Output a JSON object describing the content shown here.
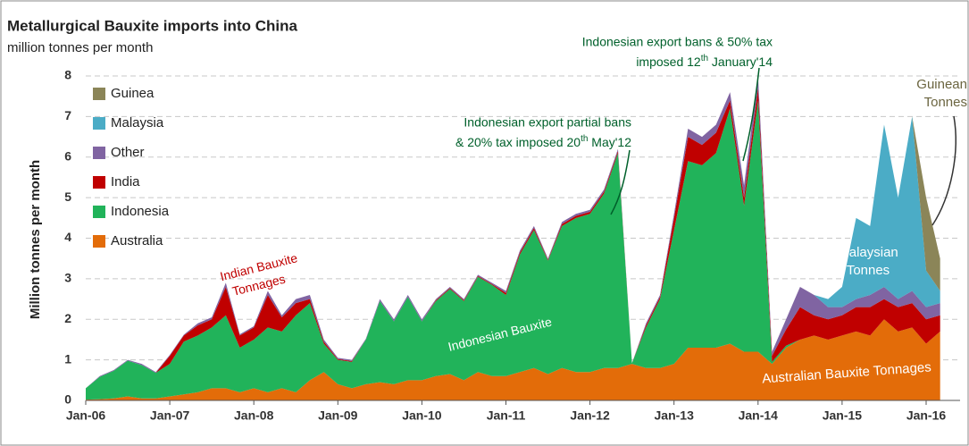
{
  "chart_data": {
    "type": "stacked_area",
    "title": "Metallurgical Bauxite imports into China",
    "subtitle": "million tonnes per month",
    "y_label": "Million tonnes per month",
    "x": [
      "2006-01",
      "2006-03",
      "2006-05",
      "2006-07",
      "2006-09",
      "2006-11",
      "2007-01",
      "2007-03",
      "2007-05",
      "2007-07",
      "2007-09",
      "2007-11",
      "2008-01",
      "2008-03",
      "2008-05",
      "2008-07",
      "2008-09",
      "2008-11",
      "2009-01",
      "2009-03",
      "2009-05",
      "2009-07",
      "2009-09",
      "2009-11",
      "2010-01",
      "2010-03",
      "2010-05",
      "2010-07",
      "2010-09",
      "2010-11",
      "2011-01",
      "2011-03",
      "2011-05",
      "2011-07",
      "2011-09",
      "2011-11",
      "2012-01",
      "2012-03",
      "2012-05",
      "2012-07",
      "2012-09",
      "2012-11",
      "2013-01",
      "2013-03",
      "2013-05",
      "2013-07",
      "2013-09",
      "2013-11",
      "2014-01",
      "2014-03",
      "2014-05",
      "2014-07",
      "2014-09",
      "2014-11",
      "2015-01",
      "2015-03",
      "2015-05",
      "2015-07",
      "2015-09",
      "2015-11",
      "2016-01",
      "2016-03"
    ],
    "series": [
      {
        "name": "Australia",
        "color": "#e36c09",
        "values": [
          0.02,
          0.03,
          0.05,
          0.1,
          0.05,
          0.05,
          0.1,
          0.15,
          0.2,
          0.3,
          0.3,
          0.2,
          0.3,
          0.2,
          0.3,
          0.2,
          0.5,
          0.7,
          0.4,
          0.3,
          0.4,
          0.45,
          0.4,
          0.5,
          0.5,
          0.6,
          0.65,
          0.5,
          0.7,
          0.6,
          0.6,
          0.7,
          0.8,
          0.65,
          0.8,
          0.7,
          0.7,
          0.8,
          0.8,
          0.9,
          0.8,
          0.8,
          0.9,
          1.3,
          1.3,
          1.3,
          1.4,
          1.2,
          1.2,
          0.9,
          1.3,
          1.5,
          1.6,
          1.5,
          1.6,
          1.7,
          1.6,
          2.0,
          1.7,
          1.8,
          1.4,
          1.7
        ]
      },
      {
        "name": "Indonesia",
        "color": "#21b35a",
        "values": [
          0.28,
          0.55,
          0.68,
          0.88,
          0.82,
          0.63,
          0.8,
          1.3,
          1.4,
          1.5,
          1.8,
          1.1,
          1.2,
          1.6,
          1.4,
          1.9,
          1.9,
          0.7,
          0.6,
          0.65,
          1.1,
          2.0,
          1.55,
          2.05,
          1.45,
          1.85,
          2.1,
          1.95,
          2.35,
          2.25,
          2.0,
          2.9,
          3.4,
          2.8,
          3.5,
          3.8,
          3.9,
          4.3,
          5.3,
          0.02,
          1.0,
          1.7,
          3.3,
          4.6,
          4.5,
          4.8,
          5.8,
          3.6,
          6.2,
          0.05,
          0.05,
          0,
          0,
          0,
          0,
          0,
          0,
          0,
          0,
          0,
          0,
          0
        ]
      },
      {
        "name": "India",
        "color": "#c00000",
        "values": [
          0,
          0,
          0,
          0,
          0,
          0,
          0.2,
          0.15,
          0.25,
          0.2,
          0.7,
          0.3,
          0.3,
          0.8,
          0.35,
          0.3,
          0.1,
          0.05,
          0.02,
          0.02,
          0,
          0,
          0,
          0,
          0,
          0.02,
          0.02,
          0.02,
          0.02,
          0.02,
          0.05,
          0.05,
          0.05,
          0.02,
          0.05,
          0.05,
          0.05,
          0.05,
          0.05,
          0,
          0.05,
          0.05,
          0.3,
          0.6,
          0.5,
          0.5,
          0.2,
          0.2,
          0.3,
          0.15,
          0.4,
          0.8,
          0.5,
          0.5,
          0.5,
          0.6,
          0.7,
          0.5,
          0.6,
          0.6,
          0.6,
          0.4
        ]
      },
      {
        "name": "Other",
        "color": "#8064a2",
        "values": [
          0,
          0.02,
          0.02,
          0.02,
          0.03,
          0.02,
          0.02,
          0.02,
          0.05,
          0.05,
          0.1,
          0.03,
          0.03,
          0.1,
          0.05,
          0.1,
          0.1,
          0.05,
          0.03,
          0.03,
          0.02,
          0.05,
          0.05,
          0.05,
          0.05,
          0.03,
          0.03,
          0.03,
          0.03,
          0.03,
          0.05,
          0.05,
          0.05,
          0.03,
          0.05,
          0.05,
          0.05,
          0.05,
          0.05,
          0,
          0.05,
          0.05,
          0.1,
          0.2,
          0.2,
          0.2,
          0.2,
          0.3,
          0.3,
          0.1,
          0.25,
          0.5,
          0.5,
          0.3,
          0.2,
          0.2,
          0.3,
          0.3,
          0.2,
          0.3,
          0.3,
          0.3
        ]
      },
      {
        "name": "Malaysia",
        "color": "#4bacc6",
        "values": [
          0,
          0,
          0,
          0,
          0,
          0,
          0,
          0,
          0,
          0,
          0,
          0,
          0,
          0,
          0,
          0,
          0,
          0,
          0,
          0,
          0,
          0,
          0,
          0,
          0,
          0,
          0,
          0,
          0,
          0,
          0,
          0,
          0,
          0,
          0,
          0,
          0,
          0,
          0,
          0,
          0,
          0,
          0,
          0,
          0,
          0,
          0,
          0,
          0,
          0,
          0,
          0,
          0,
          0.2,
          0.5,
          2.0,
          1.7,
          4.0,
          2.5,
          4.3,
          0.9,
          0.3
        ]
      },
      {
        "name": "Guinea",
        "color": "#8b8558",
        "values": [
          0,
          0,
          0,
          0,
          0,
          0,
          0,
          0,
          0,
          0,
          0,
          0,
          0,
          0,
          0,
          0,
          0,
          0,
          0,
          0,
          0,
          0,
          0,
          0,
          0,
          0,
          0,
          0,
          0,
          0,
          0,
          0,
          0,
          0,
          0,
          0,
          0,
          0,
          0,
          0,
          0,
          0,
          0,
          0,
          0,
          0,
          0,
          0,
          0,
          0,
          0,
          0,
          0,
          0,
          0,
          0,
          0,
          0,
          0,
          0,
          1.8,
          0.8
        ]
      }
    ],
    "ylim": [
      0,
      8
    ],
    "yticks": [
      0,
      1,
      2,
      3,
      4,
      5,
      6,
      7,
      8
    ],
    "xticks": [
      {
        "value": "2006-01",
        "label": "Jan-06"
      },
      {
        "value": "2007-01",
        "label": "Jan-07"
      },
      {
        "value": "2008-01",
        "label": "Jan-08"
      },
      {
        "value": "2009-01",
        "label": "Jan-09"
      },
      {
        "value": "2010-01",
        "label": "Jan-10"
      },
      {
        "value": "2011-01",
        "label": "Jan-11"
      },
      {
        "value": "2012-01",
        "label": "Jan-12"
      },
      {
        "value": "2013-01",
        "label": "Jan-13"
      },
      {
        "value": "2014-01",
        "label": "Jan-14"
      },
      {
        "value": "2015-01",
        "label": "Jan-15"
      },
      {
        "value": "2016-01",
        "label": "Jan-16"
      }
    ],
    "grid": true,
    "legend": "top-left",
    "annotations": [
      {
        "lines": [
          "Indonesian export bans & 50% tax",
          "imposed 12th January'14"
        ]
      },
      {
        "lines": [
          "Indonesian export partial bans",
          "& 20% tax imposed 20th May'12"
        ]
      },
      {
        "lines": [
          "Guinean",
          "Tonnes"
        ]
      },
      {
        "lines": [
          "Indian Bauxite",
          "Tonnages"
        ]
      },
      {
        "lines": [
          "Indonesian Bauxite"
        ]
      },
      {
        "lines": [
          "Malaysian",
          "Tonnes"
        ]
      },
      {
        "lines": [
          "Australian Bauxite Tonnages"
        ]
      }
    ]
  }
}
